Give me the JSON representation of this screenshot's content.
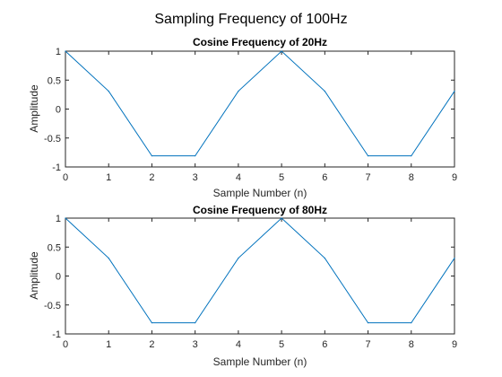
{
  "figure": {
    "title": "Sampling Frequency of 100Hz"
  },
  "chart_data": [
    {
      "type": "line",
      "title": "Cosine Frequency of 20Hz",
      "xlabel": "Sample Number (n)",
      "ylabel": "Amplitude",
      "xlim": [
        0,
        9
      ],
      "ylim": [
        -1,
        1
      ],
      "xticks": [
        "0",
        "1",
        "2",
        "3",
        "4",
        "5",
        "6",
        "7",
        "8",
        "9"
      ],
      "yticks": [
        "-1",
        "-0.5",
        "0",
        "0.5",
        "1"
      ],
      "grid": false,
      "series": [
        {
          "color": "#0072BD",
          "x": [
            0,
            1,
            2,
            3,
            4,
            5,
            6,
            7,
            8,
            9
          ],
          "y": [
            1,
            0.309,
            -0.809,
            -0.809,
            0.309,
            1,
            0.309,
            -0.809,
            -0.809,
            0.309
          ]
        }
      ]
    },
    {
      "type": "line",
      "title": "Cosine Frequency of 80Hz",
      "xlabel": "Sample Number (n)",
      "ylabel": "Amplitude",
      "xlim": [
        0,
        9
      ],
      "ylim": [
        -1,
        1
      ],
      "xticks": [
        "0",
        "1",
        "2",
        "3",
        "4",
        "5",
        "6",
        "7",
        "8",
        "9"
      ],
      "yticks": [
        "-1",
        "-0.5",
        "0",
        "0.5",
        "1"
      ],
      "grid": false,
      "series": [
        {
          "color": "#0072BD",
          "x": [
            0,
            1,
            2,
            3,
            4,
            5,
            6,
            7,
            8,
            9
          ],
          "y": [
            1,
            0.309,
            -0.809,
            -0.809,
            0.309,
            1,
            0.309,
            -0.809,
            -0.809,
            0.309
          ]
        }
      ]
    }
  ]
}
